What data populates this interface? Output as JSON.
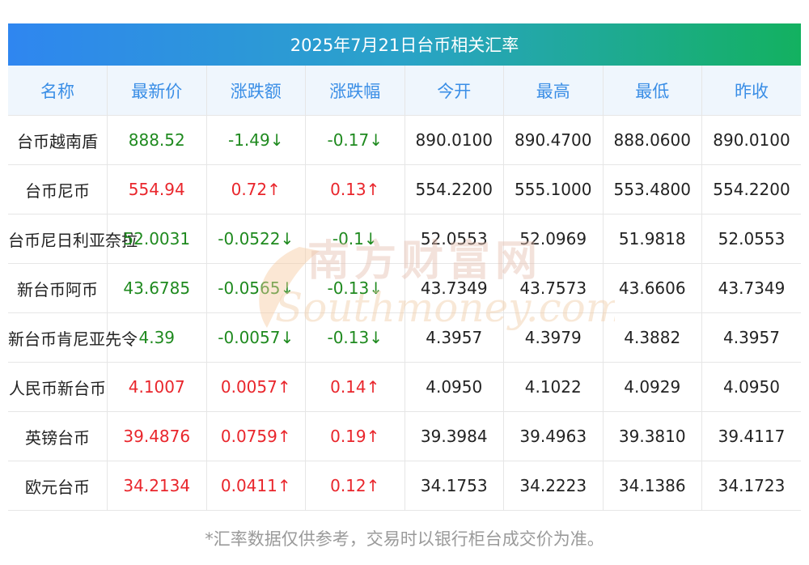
{
  "title": "2025年7月21日台币相关汇率",
  "headers": [
    "名称",
    "最新价",
    "涨跌额",
    "涨跌幅",
    "今开",
    "最高",
    "最低",
    "昨收"
  ],
  "rows": [
    {
      "name": "台币越南盾",
      "latest": "888.52",
      "change": "-1.49↓",
      "pct": "-0.17↓",
      "open": "890.0100",
      "high": "890.4700",
      "low": "888.0600",
      "prev": "890.0100",
      "dir": "down"
    },
    {
      "name": "台币尼币",
      "latest": "554.94",
      "change": "0.72↑",
      "pct": "0.13↑",
      "open": "554.2200",
      "high": "555.1000",
      "low": "553.4800",
      "prev": "554.2200",
      "dir": "up"
    },
    {
      "name": "台币尼日利亚奈拉",
      "latest": "52.0031",
      "change": "-0.0522↓",
      "pct": "-0.1↓",
      "open": "52.0553",
      "high": "52.0969",
      "low": "51.9818",
      "prev": "52.0553",
      "dir": "down"
    },
    {
      "name": "新台币阿币",
      "latest": "43.6785",
      "change": "-0.0565↓",
      "pct": "-0.13↓",
      "open": "43.7349",
      "high": "43.7573",
      "low": "43.6606",
      "prev": "43.7349",
      "dir": "down"
    },
    {
      "name": "新台币肯尼亚先令",
      "latest": "4.39",
      "change": "-0.0057↓",
      "pct": "-0.13↓",
      "open": "4.3957",
      "high": "4.3979",
      "low": "4.3882",
      "prev": "4.3957",
      "dir": "down"
    },
    {
      "name": "人民币新台币",
      "latest": "4.1007",
      "change": "0.0057↑",
      "pct": "0.14↑",
      "open": "4.0950",
      "high": "4.1022",
      "low": "4.0929",
      "prev": "4.0950",
      "dir": "up"
    },
    {
      "name": "英镑台币",
      "latest": "39.4876",
      "change": "0.0759↑",
      "pct": "0.19↑",
      "open": "39.3984",
      "high": "39.4963",
      "low": "39.3810",
      "prev": "39.4117",
      "dir": "up"
    },
    {
      "name": "欧元台币",
      "latest": "34.2134",
      "change": "0.0411↑",
      "pct": "0.12↑",
      "open": "34.1753",
      "high": "34.2223",
      "low": "34.1386",
      "prev": "34.1723",
      "dir": "up"
    }
  ],
  "watermark": {
    "line1": "南方财富网",
    "line2": "Southmoney.com"
  },
  "footnote": "*汇率数据仅供参考，交易时以银行柜台成交价为准。",
  "colors": {
    "up": "#e9262c",
    "down": "#1f8a1f",
    "header_text": "#3a8ee6",
    "header_bg": "#eff6fd"
  }
}
